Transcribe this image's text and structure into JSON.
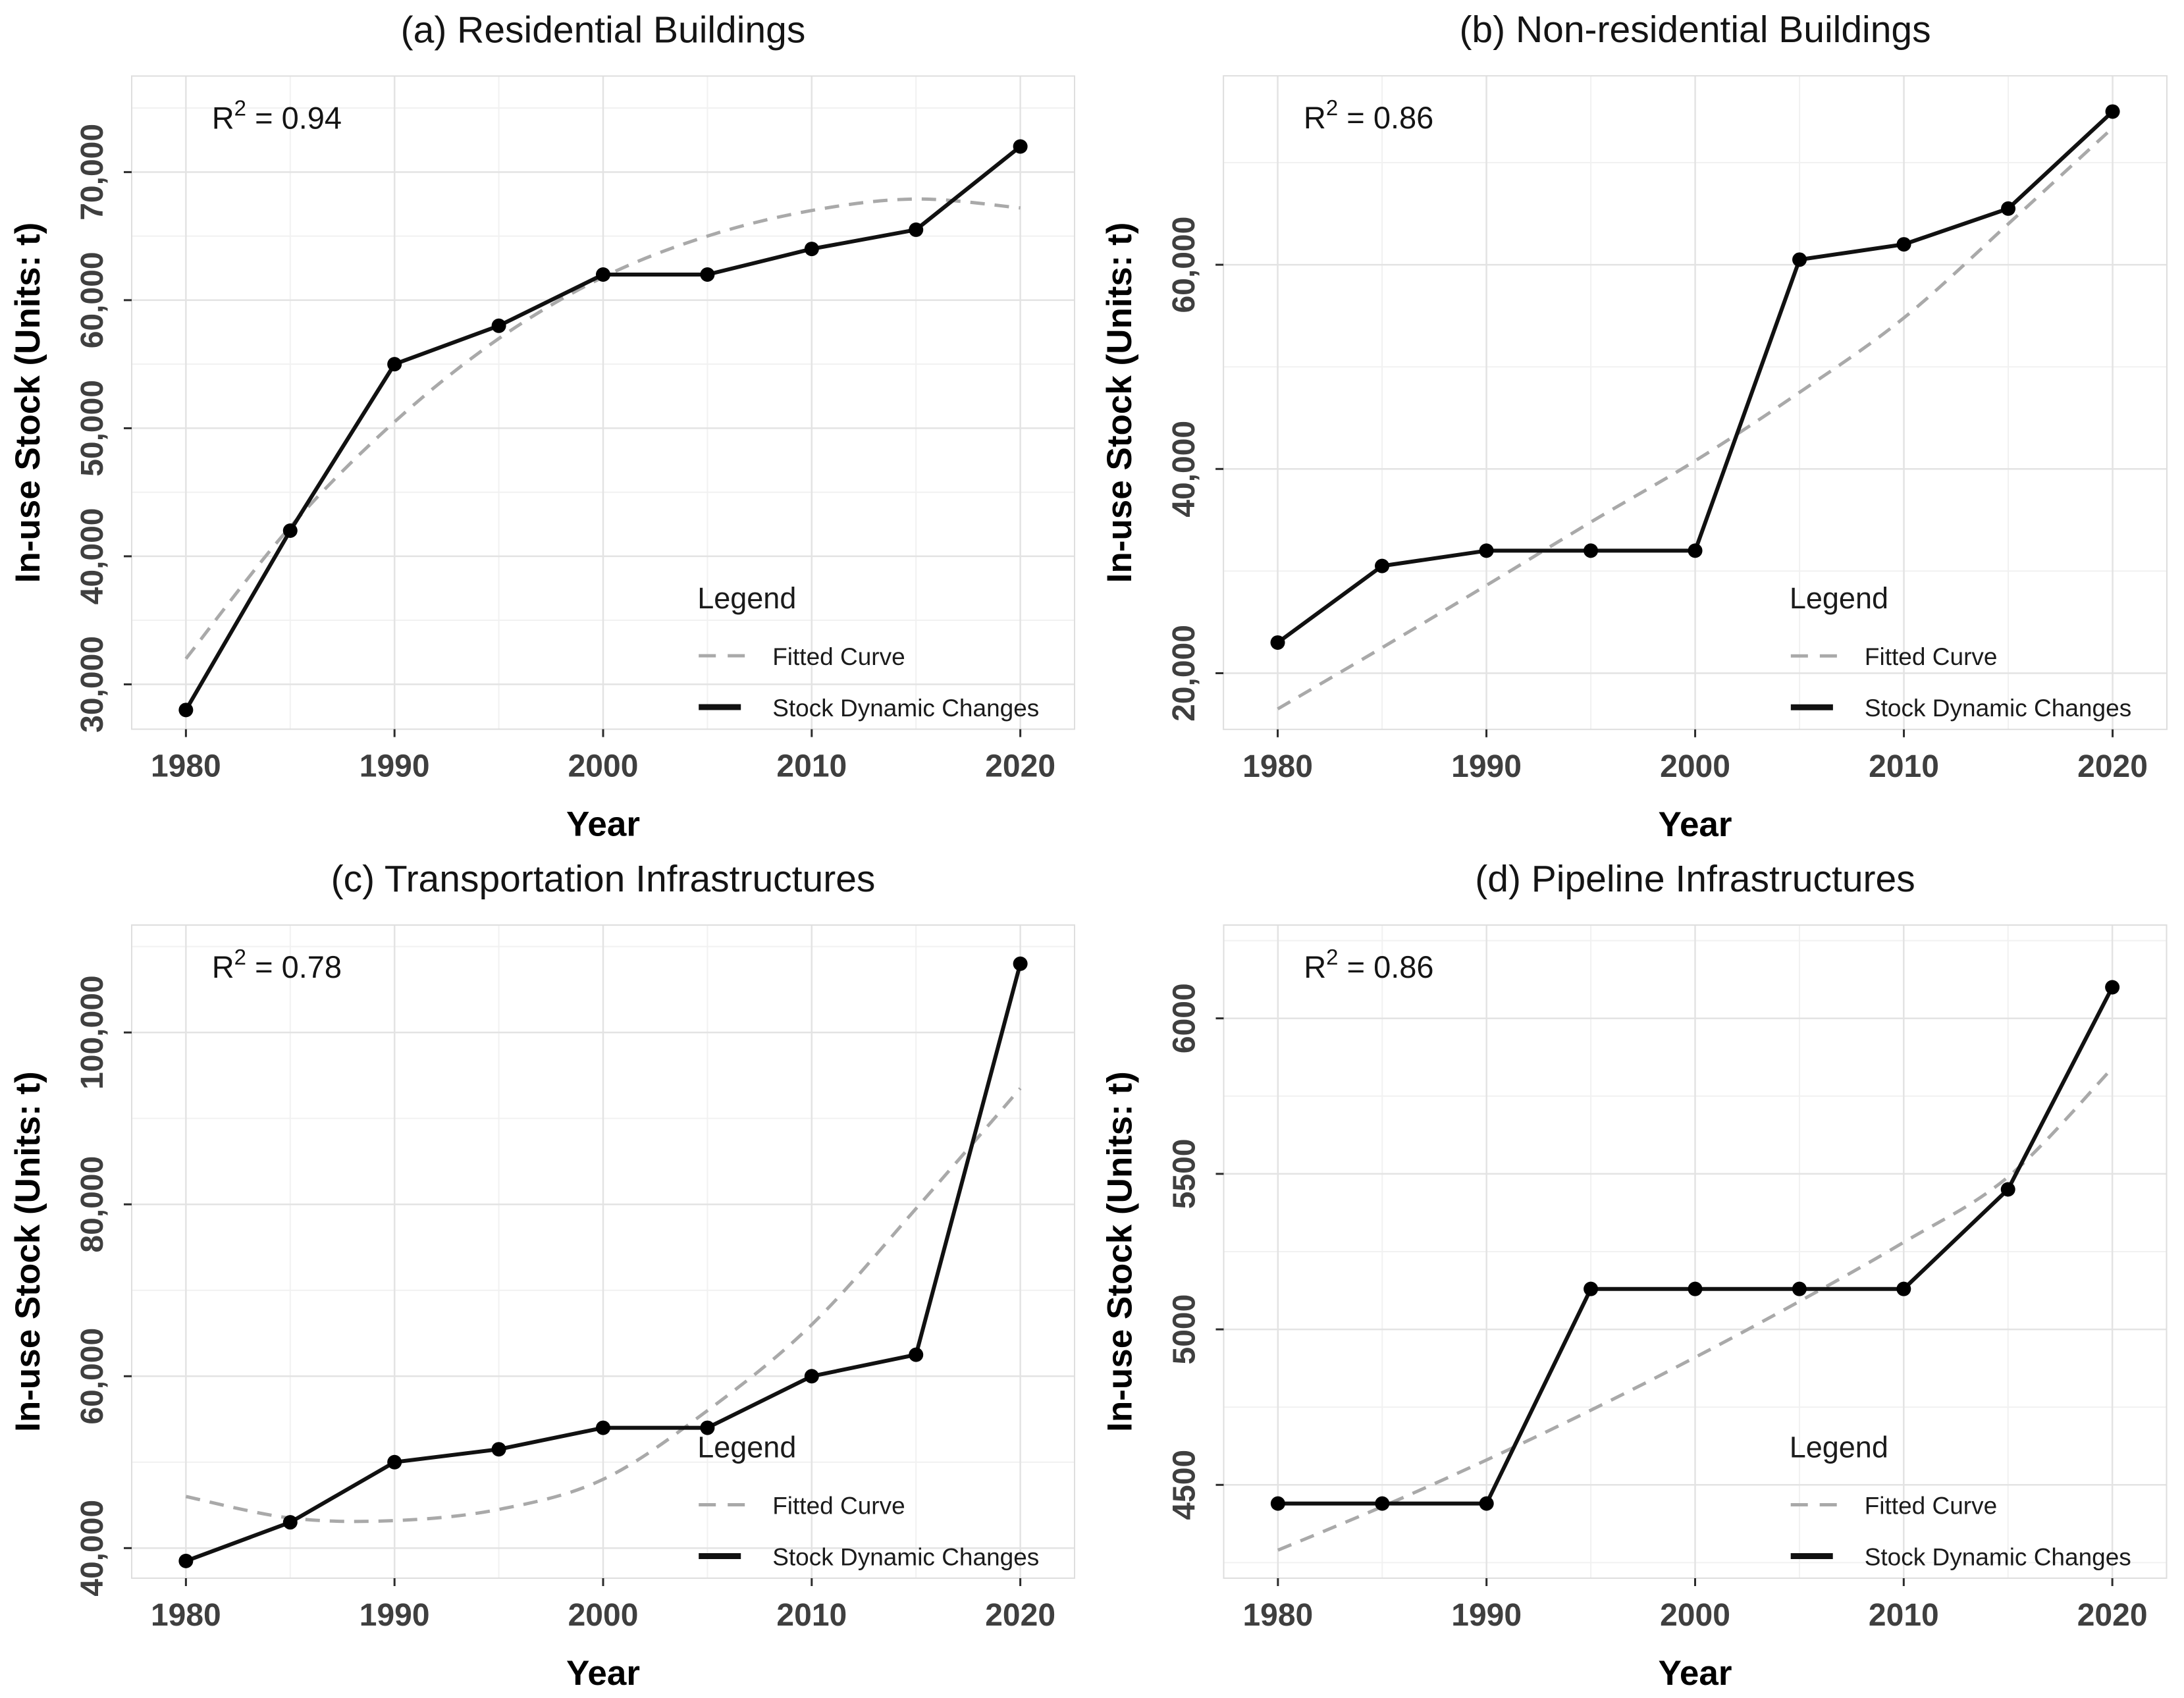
{
  "figure": {
    "background": "#ffffff",
    "x_axis_label": "Year",
    "y_axis_label": "In-use Stock (Units: t)",
    "x_ticks": [
      {
        "v": 1980,
        "label": "1980"
      },
      {
        "v": 1990,
        "label": "1990"
      },
      {
        "v": 2000,
        "label": "2000"
      },
      {
        "v": 2010,
        "label": "2010"
      },
      {
        "v": 2020,
        "label": "2020"
      }
    ],
    "x_minor_ticks": [
      1985,
      1995,
      2005,
      2015
    ],
    "xlim": [
      1977.4,
      2022.6
    ],
    "legend": {
      "title": "Legend",
      "items": [
        {
          "label": "Fitted Curve",
          "style": "dashed"
        },
        {
          "label": "Stock Dynamic Changes",
          "style": "solid"
        }
      ]
    }
  },
  "colors": {
    "stock_line": "#111111",
    "marker": "#000000",
    "fitted_line": "#a9a9a9",
    "grid_major": "#e3e3e3",
    "grid_minor": "#f1f1f1",
    "panel_border": "#dedede",
    "tick_mark": "#2b2b2b",
    "tick_label": "#3f3f3f",
    "title_text": "#141414",
    "axis_title_text": "#000000",
    "legend_text": "#1b1b1b"
  },
  "chart_data": [
    {
      "type": "line",
      "panel": "a",
      "title": "(a) Residential Buildings",
      "r2_base": "R",
      "r2_sup": "2",
      "r2_rest": " = 0.94",
      "xlabel": "Year",
      "ylabel": "In-use Stock (Units: t)",
      "x": [
        1980,
        1985,
        1990,
        1995,
        2000,
        2005,
        2010,
        2015,
        2020
      ],
      "series": [
        {
          "name": "Stock Dynamic Changes",
          "style": "solid",
          "values": [
            28000,
            42000,
            55000,
            58000,
            62000,
            62000,
            64000,
            65500,
            72000
          ]
        },
        {
          "name": "Fitted Curve",
          "style": "dashed",
          "values": [
            32000,
            42300,
            50500,
            57000,
            61800,
            65000,
            67000,
            67900,
            67200
          ]
        }
      ],
      "ylim": [
        26500,
        77500
      ],
      "yticks": [
        {
          "v": 30000,
          "label": "30,000"
        },
        {
          "v": 40000,
          "label": "40,000"
        },
        {
          "v": 50000,
          "label": "50,000"
        },
        {
          "v": 60000,
          "label": "60,000"
        },
        {
          "v": 70000,
          "label": "70,000"
        }
      ],
      "yminor": [
        35000,
        45000,
        55000,
        65000,
        75000
      ],
      "grid": true,
      "legend_position": "lower-right"
    },
    {
      "type": "line",
      "panel": "b",
      "title": "(b) Non-residential Buildings",
      "r2_base": "R",
      "r2_sup": "2",
      "r2_rest": " = 0.86",
      "xlabel": "Year",
      "ylabel": "In-use Stock (Units: t)",
      "x": [
        1980,
        1985,
        1990,
        1995,
        2000,
        2005,
        2010,
        2015,
        2020
      ],
      "series": [
        {
          "name": "Stock Dynamic Changes",
          "style": "solid",
          "values": [
            23000,
            30500,
            32000,
            32000,
            32000,
            60500,
            62000,
            65500,
            75000
          ]
        },
        {
          "name": "Fitted Curve",
          "style": "dashed",
          "values": [
            16500,
            22500,
            28600,
            34800,
            40800,
            47500,
            54800,
            64000,
            73400
          ]
        }
      ],
      "ylim": [
        14500,
        78500
      ],
      "yticks": [
        {
          "v": 20000,
          "label": "20,000"
        },
        {
          "v": 40000,
          "label": "40,000"
        },
        {
          "v": 60000,
          "label": "60,000"
        }
      ],
      "yminor": [
        30000,
        50000,
        70000
      ],
      "grid": true,
      "legend_position": "lower-right"
    },
    {
      "type": "line",
      "panel": "c",
      "title": "(c) Transportation Infrastructures",
      "r2_base": "R",
      "r2_sup": "2",
      "r2_rest": " = 0.78",
      "xlabel": "Year",
      "ylabel": "In-use Stock (Units: t)",
      "x": [
        1980,
        1985,
        1990,
        1995,
        2000,
        2005,
        2010,
        2015,
        2020
      ],
      "series": [
        {
          "name": "Stock Dynamic Changes",
          "style": "solid",
          "values": [
            38500,
            43000,
            50000,
            51500,
            54000,
            54000,
            60000,
            62500,
            108000
          ]
        },
        {
          "name": "Fitted Curve",
          "style": "dashed",
          "values": [
            46000,
            43500,
            43200,
            44500,
            48000,
            56000,
            66000,
            79500,
            93500
          ]
        }
      ],
      "ylim": [
        36500,
        112500
      ],
      "yticks": [
        {
          "v": 40000,
          "label": "40,000"
        },
        {
          "v": 60000,
          "label": "60,000"
        },
        {
          "v": 80000,
          "label": "80,000"
        },
        {
          "v": 100000,
          "label": "100,000"
        }
      ],
      "yminor": [
        50000,
        70000,
        90000,
        110000
      ],
      "grid": true,
      "legend_position": "lower-right"
    },
    {
      "type": "line",
      "panel": "d",
      "title": "(d) Pipeline Infrastructures",
      "r2_base": "R",
      "r2_sup": "2",
      "r2_rest": " = 0.86",
      "xlabel": "Year",
      "ylabel": "In-use Stock (Units: t)",
      "x": [
        1980,
        1985,
        1990,
        1995,
        2000,
        2005,
        2010,
        2015,
        2020
      ],
      "series": [
        {
          "name": "Stock Dynamic Changes",
          "style": "solid",
          "values": [
            4440,
            4440,
            4440,
            5130,
            5130,
            5130,
            5130,
            5450,
            6100
          ]
        },
        {
          "name": "Fitted Curve",
          "style": "dashed",
          "values": [
            4290,
            4430,
            4580,
            4740,
            4910,
            5090,
            5280,
            5490,
            5840
          ]
        }
      ],
      "ylim": [
        4200,
        6300
      ],
      "yticks": [
        {
          "v": 4500,
          "label": "4500"
        },
        {
          "v": 5000,
          "label": "5000"
        },
        {
          "v": 5500,
          "label": "5500"
        },
        {
          "v": 6000,
          "label": "6000"
        }
      ],
      "yminor": [
        4250,
        4750,
        5250,
        5750,
        6250
      ],
      "grid": true,
      "legend_position": "lower-right"
    }
  ]
}
